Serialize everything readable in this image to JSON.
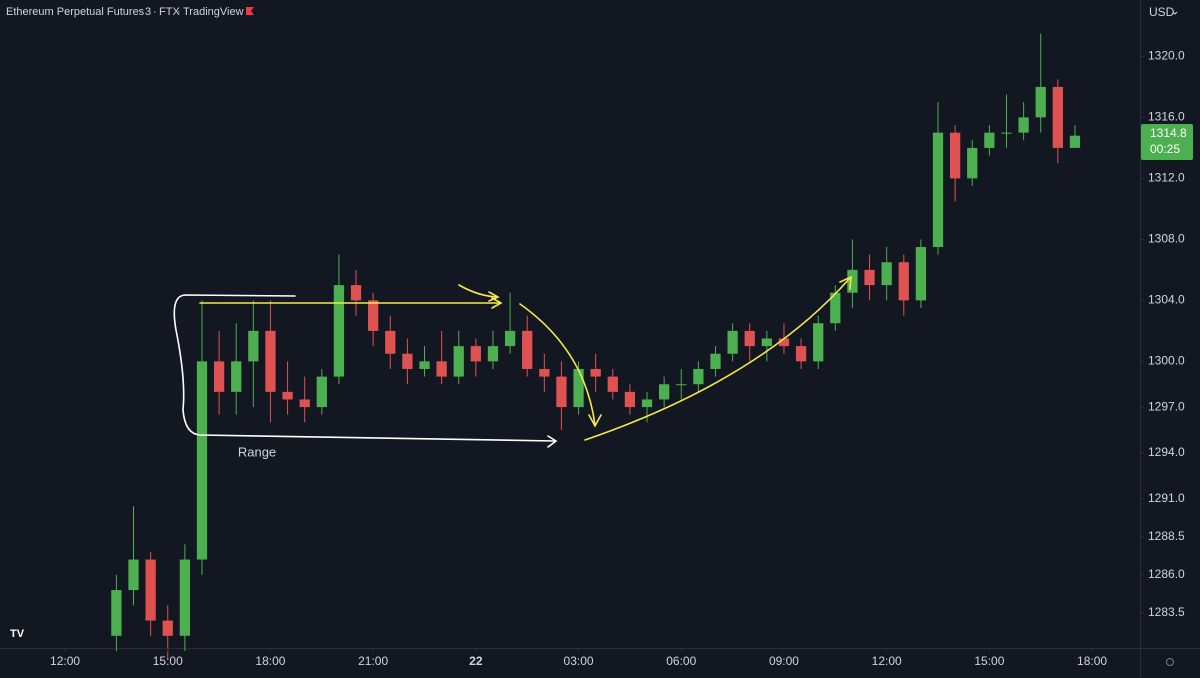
{
  "chart_data": {
    "type": "candlestick",
    "header": {
      "symbol": "Ethereum Perpetual Futures",
      "interval": "3",
      "exchange": "FTX",
      "source": "TradingView"
    },
    "currency": "USD",
    "countdown": "00:25",
    "annotation": "Range",
    "up_color": "#4caf50",
    "down_color": "#e05252",
    "grid": false,
    "x": [
      13.5,
      14,
      14.5,
      15,
      15.5,
      16,
      16.5,
      17,
      17.5,
      18,
      18.5,
      19,
      19.5,
      20,
      20.5,
      21,
      21.5,
      22,
      22.5,
      23,
      23.5,
      24,
      24.5,
      25,
      25.5,
      26,
      26.5,
      27,
      27.5,
      28,
      28.5,
      29,
      29.5,
      30,
      30.5,
      31,
      31.5,
      32,
      32.5,
      33,
      33.5,
      34,
      34.5,
      35,
      35.5,
      36,
      36.5,
      37,
      37.5,
      38,
      38.5,
      39,
      39.5,
      40,
      40.5,
      41,
      41.5
    ],
    "open": [
      1282,
      1285,
      1287,
      1283,
      1282,
      1287,
      1300,
      1298,
      1300,
      1302,
      1298,
      1297.5,
      1297,
      1299,
      1305,
      1304,
      1302,
      1300.5,
      1299.5,
      1300,
      1299,
      1301,
      1300,
      1301,
      1302,
      1299.5,
      1299,
      1297,
      1299.5,
      1299,
      1298,
      1297,
      1297.5,
      1298.5,
      1298.5,
      1299.5,
      1300.5,
      1302,
      1301,
      1301.5,
      1301,
      1300,
      1302.5,
      1304.5,
      1306,
      1305,
      1306.5,
      1304,
      1307.5,
      1315,
      1312,
      1314,
      1315,
      1315,
      1316,
      1318,
      1314
    ],
    "high": [
      1286,
      1290.5,
      1287.5,
      1284,
      1288,
      1304,
      1302,
      1302.5,
      1304,
      1304,
      1300,
      1299,
      1299.5,
      1307,
      1306,
      1304.5,
      1303,
      1301.5,
      1301,
      1302,
      1302,
      1301.5,
      1302,
      1304.5,
      1303,
      1300.5,
      1300,
      1300,
      1300.5,
      1299.5,
      1298.5,
      1298,
      1299,
      1299.5,
      1300,
      1301,
      1302.5,
      1302.5,
      1302,
      1302.5,
      1301.5,
      1303,
      1305,
      1308,
      1307,
      1307.5,
      1307,
      1308,
      1317,
      1315.5,
      1314.5,
      1315.5,
      1317.5,
      1317,
      1321.5,
      1318.5,
      1315.5
    ],
    "low": [
      1281,
      1284,
      1282,
      1280.5,
      1281,
      1286,
      1296.5,
      1296.5,
      1297,
      1296,
      1296.5,
      1296,
      1296.5,
      1298.5,
      1303,
      1301,
      1299.5,
      1298.5,
      1299,
      1298.5,
      1298.5,
      1299,
      1299.5,
      1300.5,
      1299,
      1298,
      1295.5,
      1296.5,
      1298,
      1297.5,
      1296.5,
      1296,
      1297,
      1297.5,
      1298,
      1299,
      1300,
      1300,
      1300,
      1300.5,
      1299.5,
      1299.5,
      1302,
      1303.5,
      1304,
      1304,
      1303,
      1303.5,
      1307,
      1310.5,
      1311.5,
      1313.5,
      1314,
      1314.5,
      1315,
      1313,
      1314
    ],
    "close": [
      1285,
      1287,
      1283,
      1282,
      1287,
      1300,
      1298,
      1300,
      1302,
      1298,
      1297.5,
      1297,
      1299,
      1305,
      1304,
      1302,
      1300.5,
      1299.5,
      1300,
      1299,
      1301,
      1300,
      1301,
      1302,
      1299.5,
      1299,
      1297,
      1299.5,
      1299,
      1298,
      1297,
      1297.5,
      1298.5,
      1298.5,
      1299.5,
      1300.5,
      1302,
      1301,
      1301.5,
      1301,
      1300,
      1302.5,
      1304.5,
      1306,
      1305,
      1306.5,
      1304,
      1307.5,
      1315,
      1312,
      1314,
      1315,
      1315,
      1316,
      1318,
      1314,
      1314.8
    ],
    "xlim": [
      10.1,
      43.4
    ],
    "xticks": [
      {
        "value": 12,
        "label": "12:00"
      },
      {
        "value": 15,
        "label": "15:00"
      },
      {
        "value": 18,
        "label": "18:00"
      },
      {
        "value": 21,
        "label": "21:00"
      },
      {
        "value": 24,
        "label": "22"
      },
      {
        "value": 27,
        "label": "03:00"
      },
      {
        "value": 30,
        "label": "06:00"
      },
      {
        "value": 33,
        "label": "09:00"
      },
      {
        "value": 36,
        "label": "12:00"
      },
      {
        "value": 39,
        "label": "15:00"
      },
      {
        "value": 42,
        "label": "18:00"
      }
    ],
    "ylim": [
      1281.2,
      1323.7
    ],
    "yticks": [
      1283.5,
      {
        "value": 1286,
        "label": "1286.0"
      },
      1288.5,
      {
        "value": 1291,
        "label": "1291.0"
      },
      {
        "value": 1294,
        "label": "1294.0"
      },
      {
        "value": 1297,
        "label": "1297.0"
      },
      {
        "value": 1300,
        "label": "1300.0"
      },
      {
        "value": 1304,
        "label": "1304.0"
      },
      {
        "value": 1308,
        "label": "1308.0"
      },
      {
        "value": 1312,
        "label": "1312.0"
      },
      {
        "value": 1316,
        "label": "1316.0"
      },
      {
        "value": 1320,
        "label": "1320.0"
      }
    ]
  }
}
